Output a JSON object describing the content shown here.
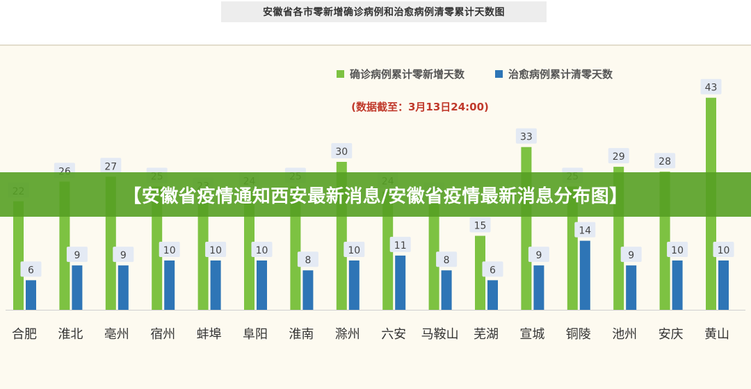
{
  "page_title": "安徽省各市零新增确诊病例和治愈病例清零累计天数图",
  "banner_text": "【安徽省疫情通知西安最新消息/安徽省疫情最新消息分布图】",
  "note": "(数据截至：3月13日24:00)",
  "colors": {
    "green": "#7dc242",
    "blue": "#2e75b6",
    "label_bg": "#e4eaf4",
    "note": "#c0392b",
    "banner": "#56a024"
  },
  "chart_data": {
    "type": "bar",
    "categories": [
      "合肥",
      "淮北",
      "亳州",
      "宿州",
      "蚌埠",
      "阜阳",
      "淮南",
      "滁州",
      "六安",
      "马鞍山",
      "芜湖",
      "宣城",
      "铜陵",
      "池州",
      "安庆",
      "黄山"
    ],
    "series": [
      {
        "name": "确诊病例累计零新增天数",
        "color": "#7dc242",
        "values": [
          22,
          26,
          27,
          25,
          23,
          24,
          25,
          30,
          24,
          22,
          15,
          33,
          25,
          29,
          28,
          43
        ]
      },
      {
        "name": "治愈病例累计清零天数",
        "color": "#2e75b6",
        "values": [
          6,
          9,
          9,
          10,
          10,
          10,
          8,
          10,
          11,
          8,
          6,
          9,
          14,
          9,
          10,
          10
        ]
      }
    ],
    "ylim": [
      0,
      45
    ],
    "grid": false,
    "legend_position": "top-center"
  }
}
